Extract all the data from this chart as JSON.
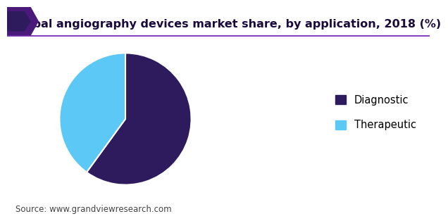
{
  "title": "Global angiography devices market share, by application, 2018 (%)",
  "labels": [
    "Diagnostic",
    "Therapeutic"
  ],
  "values": [
    60,
    40
  ],
  "colors": [
    "#2d1b5e",
    "#5bc8f5"
  ],
  "legend_labels": [
    "Diagnostic",
    "Therapeutic"
  ],
  "source_text": "Source: www.grandviewresearch.com",
  "title_fontsize": 11.5,
  "legend_fontsize": 10.5,
  "source_fontsize": 8.5,
  "background_color": "#ffffff",
  "startangle": 90,
  "title_color": "#1a0a3c",
  "accent_line_color": "#6a1db5",
  "accent_shape_color1": "#4a1a7a",
  "accent_shape_color2": "#2d1b5e",
  "source_color": "#444444"
}
